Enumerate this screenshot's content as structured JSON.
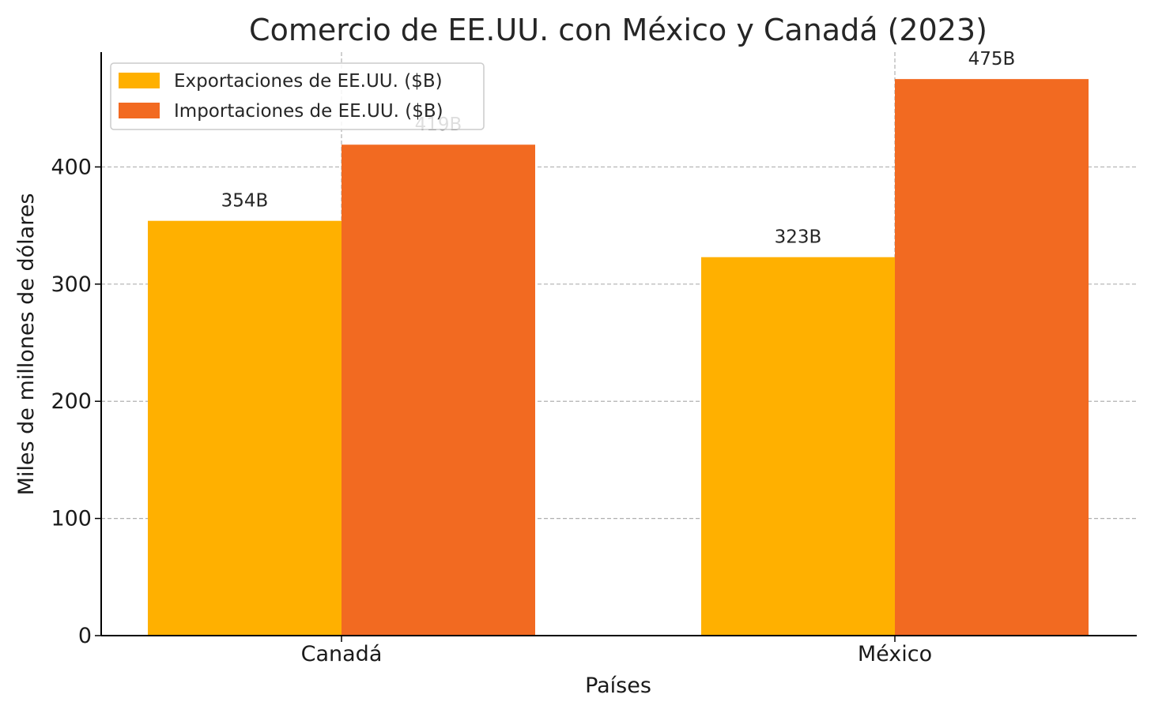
{
  "chart_data": {
    "type": "bar",
    "title": "Comercio de EE.UU. con México y Canadá (2023)",
    "xlabel": "Países",
    "ylabel": "Miles de millones de dólares",
    "categories": [
      "Canadá",
      "México"
    ],
    "series": [
      {
        "name": "Exportaciones de EE.UU. ($B)",
        "values": [
          354,
          323
        ],
        "labels": [
          "354B",
          "323B"
        ],
        "color": "#FFB000"
      },
      {
        "name": "Importaciones de EE.UU. ($B)",
        "values": [
          419,
          475
        ],
        "labels": [
          "419B",
          "475B"
        ],
        "color": "#F26A21"
      }
    ],
    "ylim": [
      0,
      498
    ],
    "yticks": [
      0,
      100,
      200,
      300,
      400
    ],
    "ytick_labels": [
      "0",
      "100",
      "200",
      "300",
      "400"
    ],
    "grid": true,
    "legend_position": "top-left"
  }
}
